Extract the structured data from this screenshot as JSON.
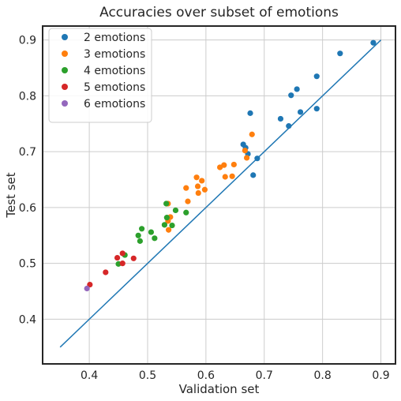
{
  "chart_data": {
    "type": "scatter",
    "title": "Accuracies over subset of emotions",
    "xlabel": "Validation set",
    "ylabel": "Test set",
    "xlim": [
      0.32,
      0.925
    ],
    "ylim": [
      0.32,
      0.925
    ],
    "xticks": [
      "0.4",
      "0.5",
      "0.6",
      "0.7",
      "0.8",
      "0.9"
    ],
    "yticks": [
      "0.4",
      "0.5",
      "0.6",
      "0.7",
      "0.8",
      "0.9"
    ],
    "grid": true,
    "legend_position": "top-left",
    "reference_line": {
      "x": [
        0.35,
        0.9
      ],
      "y": [
        0.35,
        0.9
      ],
      "color": "#1f77b4"
    },
    "series": [
      {
        "name": "2 emotions",
        "color": "#1f77b4",
        "points": [
          [
            0.887,
            0.895
          ],
          [
            0.83,
            0.876
          ],
          [
            0.79,
            0.835
          ],
          [
            0.756,
            0.812
          ],
          [
            0.746,
            0.801
          ],
          [
            0.762,
            0.771
          ],
          [
            0.79,
            0.777
          ],
          [
            0.728,
            0.759
          ],
          [
            0.742,
            0.746
          ],
          [
            0.676,
            0.769
          ],
          [
            0.664,
            0.713
          ],
          [
            0.668,
            0.707
          ],
          [
            0.672,
            0.696
          ],
          [
            0.688,
            0.688
          ],
          [
            0.681,
            0.658
          ]
        ]
      },
      {
        "name": "3 emotions",
        "color": "#ff7f0e",
        "points": [
          [
            0.679,
            0.731
          ],
          [
            0.667,
            0.702
          ],
          [
            0.67,
            0.689
          ],
          [
            0.648,
            0.677
          ],
          [
            0.631,
            0.676
          ],
          [
            0.624,
            0.672
          ],
          [
            0.645,
            0.656
          ],
          [
            0.633,
            0.655
          ],
          [
            0.584,
            0.654
          ],
          [
            0.593,
            0.648
          ],
          [
            0.586,
            0.638
          ],
          [
            0.566,
            0.635
          ],
          [
            0.598,
            0.632
          ],
          [
            0.587,
            0.626
          ],
          [
            0.569,
            0.611
          ],
          [
            0.535,
            0.607
          ],
          [
            0.539,
            0.583
          ],
          [
            0.535,
            0.576
          ],
          [
            0.536,
            0.56
          ]
        ]
      },
      {
        "name": "4 emotions",
        "color": "#2ca02c",
        "points": [
          [
            0.532,
            0.607
          ],
          [
            0.548,
            0.595
          ],
          [
            0.566,
            0.591
          ],
          [
            0.533,
            0.582
          ],
          [
            0.529,
            0.569
          ],
          [
            0.542,
            0.568
          ],
          [
            0.49,
            0.562
          ],
          [
            0.506,
            0.556
          ],
          [
            0.484,
            0.55
          ],
          [
            0.512,
            0.545
          ],
          [
            0.487,
            0.54
          ],
          [
            0.461,
            0.515
          ],
          [
            0.45,
            0.499
          ]
        ]
      },
      {
        "name": "5 emotions",
        "color": "#d62728",
        "points": [
          [
            0.457,
            0.518
          ],
          [
            0.448,
            0.51
          ],
          [
            0.476,
            0.509
          ],
          [
            0.457,
            0.5
          ],
          [
            0.428,
            0.484
          ],
          [
            0.401,
            0.462
          ]
        ]
      },
      {
        "name": "6 emotions",
        "color": "#9467bd",
        "points": [
          [
            0.396,
            0.455
          ]
        ]
      }
    ]
  }
}
